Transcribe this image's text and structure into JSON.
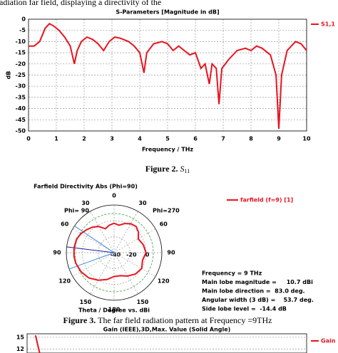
{
  "header_text": "adiation far field, displaying a directivity of the",
  "captions": [
    {
      "label": "Figure 2.",
      "symbol": "S",
      "sub": "11"
    },
    {
      "label": "Figure 3.",
      "text": "The far field radiation pattern at Frequency =9THz"
    }
  ],
  "chart_data": [
    {
      "type": "line",
      "title": "S-Parameters [Magnitude in dB]",
      "x_label": "Frequency / THz",
      "y_label": "dB",
      "x": [
        0,
        0.2,
        0.4,
        0.6,
        0.75,
        0.9,
        1.1,
        1.3,
        1.5,
        1.65,
        1.75,
        1.9,
        2.1,
        2.3,
        2.5,
        2.7,
        2.9,
        3.1,
        3.3,
        3.6,
        3.8,
        4.0,
        4.15,
        4.25,
        4.5,
        4.8,
        5.0,
        5.2,
        5.4,
        5.6,
        5.8,
        6.0,
        6.2,
        6.35,
        6.5,
        6.6,
        6.75,
        6.85,
        6.95,
        7.2,
        7.5,
        7.8,
        8.0,
        8.2,
        8.4,
        8.7,
        8.9,
        9.0,
        9.1,
        9.3,
        9.6,
        9.8,
        10
      ],
      "series": [
        {
          "name": "S1,1",
          "color": "#e8141e",
          "values": [
            -12,
            -12,
            -10,
            -4,
            -2,
            -3,
            -5,
            -8,
            -12,
            -20,
            -14,
            -10,
            -8,
            -9,
            -11,
            -14,
            -10,
            -8,
            -8.5,
            -10,
            -12,
            -15,
            -24,
            -15,
            -11,
            -10,
            -11,
            -14,
            -12,
            -14,
            -16,
            -15,
            -22,
            -20,
            -29,
            -20,
            -22,
            -38,
            -22,
            -18,
            -14,
            -13,
            -14,
            -12,
            -13,
            -16,
            -25,
            -49,
            -25,
            -14,
            -10,
            -11,
            -14
          ]
        }
      ],
      "xlim": [
        0,
        10
      ],
      "xticks": [
        0,
        1,
        2,
        3,
        4,
        5,
        6,
        7,
        8,
        9,
        10
      ],
      "ylim": [
        -50,
        0
      ],
      "yticks": [
        0,
        -5,
        -10,
        -15,
        -20,
        -25,
        -30,
        -35,
        -40,
        -45,
        -50
      ],
      "grid": true
    },
    {
      "type": "polar",
      "title": "Farfield Directivity Abs (Phi=90)",
      "left_label": "Phi= 90",
      "right_label": "Phi=270",
      "axis_label": "Theta / Degree vs. dBi",
      "theta": [
        -180,
        -165,
        -150,
        -135,
        -120,
        -105,
        -95,
        -83,
        -70,
        -60,
        -50,
        -40,
        -30,
        -20,
        -10,
        0,
        10,
        20,
        30,
        40,
        50,
        60,
        75,
        90,
        105,
        120,
        135,
        150,
        165,
        180
      ],
      "series": [
        {
          "name": "farfield (f=9) [1]",
          "color": "#e8141e",
          "values": [
            -10,
            -5,
            0,
            5,
            8,
            10,
            10.5,
            10.7,
            10,
            8,
            5,
            2,
            -2,
            -8,
            -5,
            -3,
            -5,
            -1,
            2,
            3,
            0,
            -5,
            -2,
            0,
            -3,
            0,
            -2,
            -6,
            -10,
            -10
          ]
        }
      ],
      "rlim": [
        -40,
        20
      ],
      "rticks": [
        -40,
        -20,
        0
      ],
      "theta_ticks": [
        0,
        30,
        60,
        90,
        120,
        150,
        180,
        {
          "value": -30,
          "label": "30"
        },
        {
          "value": -60,
          "label": "60"
        },
        {
          "value": -90,
          "label": "90"
        },
        {
          "value": -120,
          "label": "120"
        },
        {
          "value": -150,
          "label": "150"
        }
      ],
      "info": [
        "Frequency = 9 THz",
        "Main lobe magnitude =     10.7 dBi",
        "Main lobe direction =  83.0 deg.",
        "Angular width (3 dB) =    53.7 deg.",
        "Side lobe level =  -14.4 dB"
      ]
    },
    {
      "type": "line",
      "title": "Gain (IEEE),3D,Max. Value (Solid Angle)",
      "x": [
        0.3,
        0.45
      ],
      "series": [
        {
          "name": "Gain (IEEE)",
          "color": "#e8141e",
          "values": [
            15.5,
            11
          ]
        }
      ],
      "xlim": [
        0,
        10
      ],
      "ylim": [
        11,
        15.9
      ],
      "yticks": [
        15,
        12
      ],
      "grid": true
    }
  ]
}
